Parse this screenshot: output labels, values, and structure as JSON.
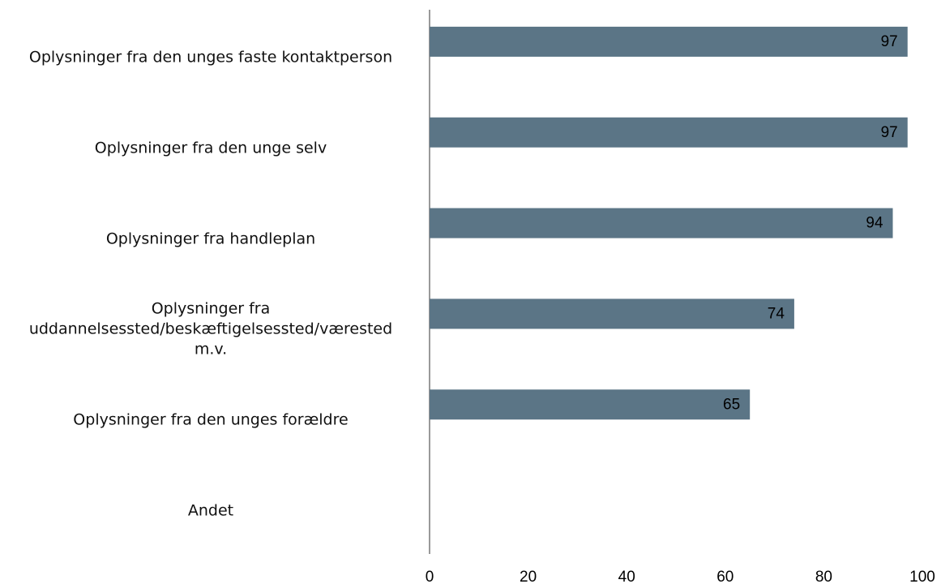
{
  "chart_data": {
    "type": "bar",
    "orientation": "horizontal",
    "categories": [
      "Oplysninger fra den unges faste kontaktperson",
      "Oplysninger fra den unge selv",
      "Oplysninger fra handleplan",
      "Oplysninger fra\nuddannelsessted/beskæftigelsessted/værested\nm.v.",
      "Oplysninger fra den unges forældre",
      "Andet"
    ],
    "values": [
      97,
      97,
      94,
      74,
      65,
      null
    ],
    "color": "#5b7586",
    "xlim": [
      0,
      100
    ],
    "xticks": [
      0,
      20,
      40,
      60,
      80,
      100
    ],
    "grid": false
  }
}
